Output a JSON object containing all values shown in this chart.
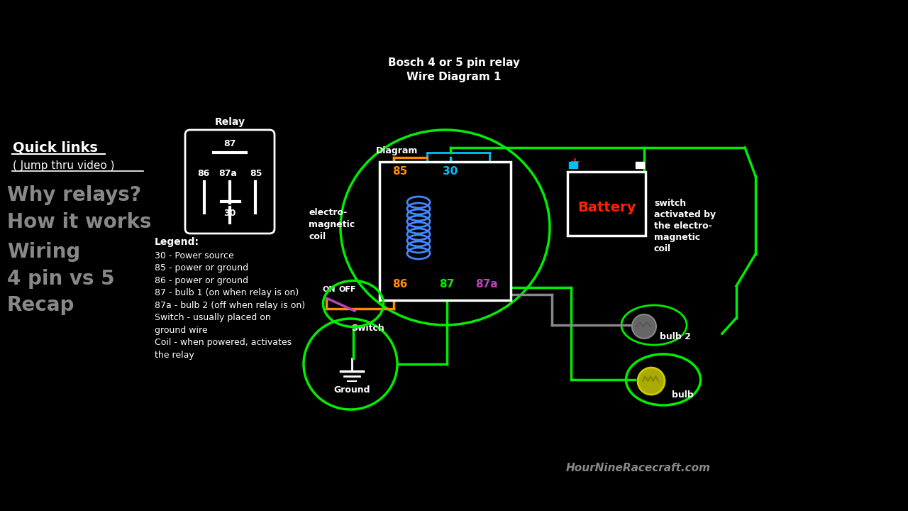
{
  "bg_color": "#000000",
  "title_line1": "Bosch 4 or 5 pin relay",
  "title_line2": "Wire Diagram 1",
  "white": "#ffffff",
  "green": "#00ee00",
  "orange": "#ff8c00",
  "cyan": "#00bfff",
  "red": "#ff2200",
  "magenta": "#bb44bb",
  "gray": "#888888",
  "blue_coil": "#4488ff",
  "left_menu": [
    "Why relays?",
    "How it works",
    "Wiring",
    "4 pin vs 5",
    "Recap"
  ],
  "left_menu_y": [
    275,
    313,
    355,
    393,
    430
  ],
  "legend_items": [
    "30 - Power source",
    "85 - power or ground",
    "86 - power or ground",
    "87 - bulb 1 (on when relay is on)",
    "87a - bulb 2 (off when relay is on)",
    "Switch - usually placed on",
    "ground wire",
    "Coil - when powered, activates",
    "the relay"
  ],
  "footer": "HourNineRacecraft.com"
}
